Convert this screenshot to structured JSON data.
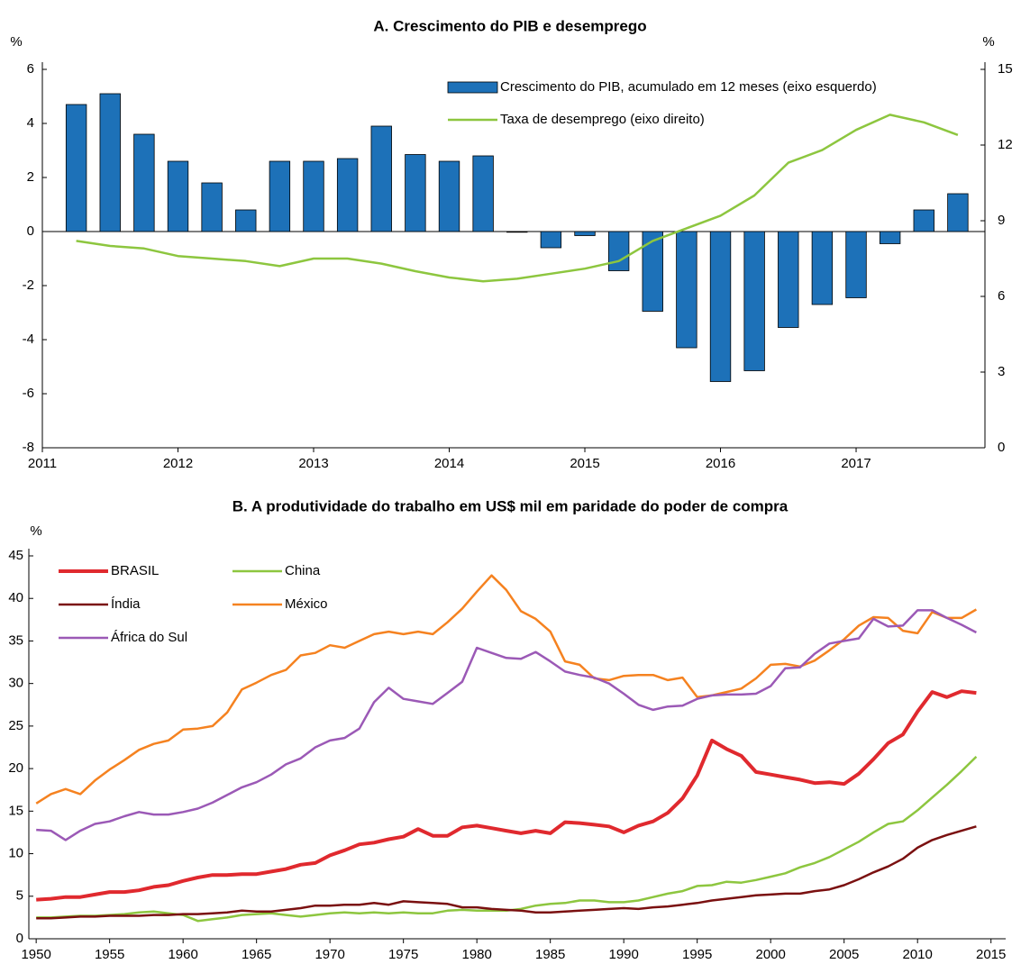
{
  "chart_data": [
    {
      "type": "bar",
      "title": "A. Crescimento do PIB e desemprego",
      "ylabel": "%",
      "y2label": "%",
      "x": [
        2011.25,
        2011.5,
        2011.75,
        2012,
        2012.25,
        2012.5,
        2012.75,
        2013,
        2013.25,
        2013.5,
        2013.75,
        2014,
        2014.25,
        2014.5,
        2014.75,
        2015,
        2015.25,
        2015.5,
        2015.75,
        2016,
        2016.25,
        2016.5,
        2016.75,
        2017,
        2017.25,
        2017.5,
        2017.75
      ],
      "xlim": [
        2011,
        2017.95
      ],
      "xticks": [
        2011,
        2012,
        2013,
        2014,
        2015,
        2016,
        2017
      ],
      "ylim": [
        -8,
        6
      ],
      "yticks": [
        -8,
        -6,
        -4,
        -2,
        0,
        2,
        4,
        6
      ],
      "y2lim": [
        0,
        15
      ],
      "y2ticks": [
        0,
        3,
        6,
        9,
        12,
        15
      ],
      "legend": "top-right",
      "series": [
        {
          "name": "Crescimento do PIB, acumulado em 12 meses (eixo esquerdo)",
          "type": "bar",
          "color": "#1d71b8",
          "values": [
            4.7,
            5.1,
            3.6,
            2.6,
            1.8,
            0.8,
            2.6,
            2.6,
            2.7,
            3.9,
            2.85,
            2.6,
            2.8,
            0.0,
            -0.6,
            -0.15,
            -1.45,
            -2.95,
            -4.3,
            -5.55,
            -5.15,
            -3.55,
            -2.7,
            -2.45,
            -0.45,
            0.8,
            1.4
          ]
        },
        {
          "name": "Taxa de desemprego (eixo direito)",
          "type": "line",
          "axis": "y2",
          "color": "#8dc63f",
          "values": [
            8.2,
            8.0,
            7.9,
            7.6,
            7.5,
            7.4,
            7.2,
            7.5,
            7.5,
            7.3,
            7.0,
            6.75,
            6.6,
            6.7,
            6.9,
            7.1,
            7.4,
            8.2,
            8.7,
            9.2,
            10.0,
            11.3,
            11.8,
            12.6,
            13.2,
            12.9,
            12.4
          ]
        }
      ]
    },
    {
      "type": "line",
      "title": "B. A produtividade do trabalho em US$ mil em paridade do poder de compra",
      "ylabel": "%",
      "x": [
        1950,
        1951,
        1952,
        1953,
        1954,
        1955,
        1956,
        1957,
        1958,
        1959,
        1960,
        1961,
        1962,
        1963,
        1964,
        1965,
        1966,
        1967,
        1968,
        1969,
        1970,
        1971,
        1972,
        1973,
        1974,
        1975,
        1976,
        1977,
        1978,
        1979,
        1980,
        1981,
        1982,
        1983,
        1984,
        1985,
        1986,
        1987,
        1988,
        1989,
        1990,
        1991,
        1992,
        1993,
        1994,
        1995,
        1996,
        1997,
        1998,
        1999,
        2000,
        2001,
        2002,
        2003,
        2004,
        2005,
        2006,
        2007,
        2008,
        2009,
        2010,
        2011,
        2012,
        2013,
        2014
      ],
      "xlim": [
        1949.5,
        2016
      ],
      "xticks": [
        1950,
        1955,
        1960,
        1965,
        1970,
        1975,
        1980,
        1985,
        1990,
        1995,
        2000,
        2005,
        2010,
        2015
      ],
      "ylim": [
        0,
        45
      ],
      "yticks": [
        0,
        5,
        10,
        15,
        20,
        25,
        30,
        35,
        40,
        45
      ],
      "legend": "top-left",
      "series": [
        {
          "name": "BRASIL",
          "color": "#e0292e",
          "width": 4,
          "values": [
            4.6,
            4.7,
            4.9,
            4.9,
            5.2,
            5.5,
            5.5,
            5.7,
            6.1,
            6.3,
            6.8,
            7.2,
            7.5,
            7.5,
            7.6,
            7.6,
            7.9,
            8.2,
            8.7,
            8.9,
            9.8,
            10.4,
            11.1,
            11.3,
            11.7,
            12.0,
            12.9,
            12.1,
            12.1,
            13.1,
            13.3,
            13.0,
            12.7,
            12.4,
            12.7,
            12.4,
            13.7,
            13.6,
            13.4,
            13.2,
            12.5,
            13.3,
            13.8,
            14.8,
            16.5,
            19.2,
            23.3,
            22.3,
            21.5,
            19.6,
            19.3,
            19.0,
            18.7,
            18.3,
            18.4,
            18.2,
            19.4,
            21.1,
            23.0,
            24.0,
            26.7,
            29.0,
            28.4,
            29.1,
            28.9
          ]
        },
        {
          "name": "China",
          "color": "#8dc63f",
          "width": 2.5,
          "values": [
            2.5,
            2.5,
            2.6,
            2.7,
            2.7,
            2.8,
            2.9,
            3.1,
            3.2,
            3.0,
            2.8,
            2.1,
            2.3,
            2.5,
            2.8,
            2.9,
            3.0,
            2.8,
            2.6,
            2.8,
            3.0,
            3.1,
            3.0,
            3.1,
            3.0,
            3.1,
            3.0,
            3.0,
            3.3,
            3.4,
            3.3,
            3.3,
            3.3,
            3.5,
            3.9,
            4.1,
            4.2,
            4.5,
            4.5,
            4.3,
            4.3,
            4.5,
            4.9,
            5.3,
            5.6,
            6.2,
            6.3,
            6.7,
            6.6,
            6.9,
            7.3,
            7.7,
            8.4,
            8.9,
            9.6,
            10.5,
            11.4,
            12.5,
            13.5,
            13.8,
            15.1,
            16.6,
            18.1,
            19.7,
            21.4
          ]
        },
        {
          "name": "Índia",
          "color": "#7a1010",
          "width": 2.5,
          "values": [
            2.4,
            2.4,
            2.5,
            2.6,
            2.6,
            2.7,
            2.7,
            2.7,
            2.8,
            2.8,
            2.9,
            2.9,
            3.0,
            3.1,
            3.3,
            3.2,
            3.2,
            3.4,
            3.6,
            3.9,
            3.9,
            4.0,
            4.0,
            4.2,
            4.0,
            4.4,
            4.3,
            4.2,
            4.1,
            3.7,
            3.7,
            3.5,
            3.4,
            3.3,
            3.1,
            3.1,
            3.2,
            3.3,
            3.4,
            3.5,
            3.6,
            3.5,
            3.7,
            3.8,
            4.0,
            4.2,
            4.5,
            4.7,
            4.9,
            5.1,
            5.2,
            5.3,
            5.3,
            5.6,
            5.8,
            6.3,
            7.0,
            7.8,
            8.5,
            9.4,
            10.7,
            11.6,
            12.2,
            12.7,
            13.2
          ]
        },
        {
          "name": "México",
          "color": "#f58220",
          "width": 2.5,
          "values": [
            15.9,
            17.0,
            17.6,
            17.0,
            18.6,
            19.9,
            21.0,
            22.2,
            22.9,
            23.3,
            24.6,
            24.7,
            25.0,
            26.6,
            29.3,
            30.1,
            31.0,
            31.6,
            33.3,
            33.6,
            34.5,
            34.2,
            35.0,
            35.8,
            36.1,
            35.8,
            36.1,
            35.8,
            37.2,
            38.8,
            40.8,
            42.7,
            41.0,
            38.5,
            37.6,
            36.1,
            32.6,
            32.2,
            30.6,
            30.4,
            30.9,
            31.0,
            31.0,
            30.4,
            30.7,
            28.4,
            28.6,
            29.0,
            29.4,
            30.6,
            32.2,
            32.3,
            32.0,
            32.7,
            33.9,
            35.2,
            36.8,
            37.8,
            37.7,
            36.2,
            35.9,
            38.4,
            37.7,
            37.7,
            38.7
          ]
        },
        {
          "name": "África do Sul",
          "color": "#9b59b6",
          "width": 2.5,
          "values": [
            12.8,
            12.7,
            11.6,
            12.7,
            13.5,
            13.8,
            14.4,
            14.9,
            14.6,
            14.6,
            14.9,
            15.3,
            16.0,
            16.9,
            17.8,
            18.4,
            19.3,
            20.5,
            21.2,
            22.5,
            23.3,
            23.6,
            24.7,
            27.8,
            29.5,
            28.2,
            27.9,
            27.6,
            28.9,
            30.2,
            34.2,
            33.6,
            33.0,
            32.9,
            33.7,
            32.6,
            31.4,
            31.0,
            30.7,
            30.0,
            28.8,
            27.5,
            26.9,
            27.3,
            27.4,
            28.2,
            28.6,
            28.7,
            28.7,
            28.8,
            29.7,
            31.8,
            31.9,
            33.5,
            34.7,
            35.0,
            35.3,
            37.6,
            36.7,
            36.8,
            38.6,
            38.6,
            37.7,
            36.9,
            36.0
          ]
        }
      ]
    }
  ]
}
